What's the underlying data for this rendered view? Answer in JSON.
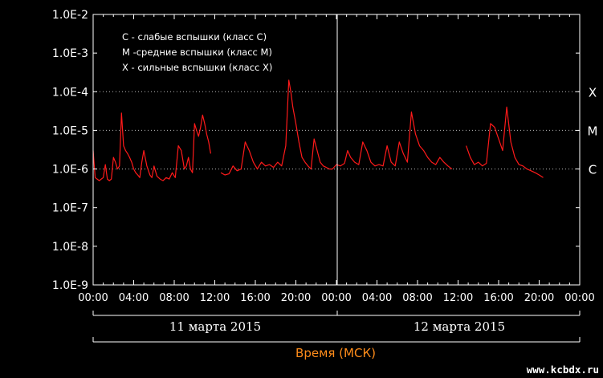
{
  "chart_data": {
    "type": "line",
    "y_scale": "log",
    "ylim": [
      "1.0E-9",
      "1.0E-2"
    ],
    "y_ticks": [
      "1.0E-2",
      "1.0E-3",
      "1.0E-4",
      "1.0E-5",
      "1.0E-6",
      "1.0E-7",
      "1.0E-8",
      "1.0E-9"
    ],
    "x_ticks": [
      "00:00",
      "04:00",
      "08:00",
      "12:00",
      "16:00",
      "20:00",
      "00:00",
      "04:00",
      "08:00",
      "12:00",
      "16:00",
      "20:00",
      "00:00"
    ],
    "date_labels": [
      "11 марта 2015",
      "12 марта 2015"
    ],
    "xlabel": "Время (МСК)",
    "legend": [
      "C - слабые вспышки (класс C)",
      "M -средние вспышки (класс M)",
      "X - сильные вспышки (класс X)"
    ],
    "class_lines": [
      {
        "label": "X",
        "value": "1.0E-4"
      },
      {
        "label": "M",
        "value": "1.0E-5"
      },
      {
        "label": "C",
        "value": "1.0E-6"
      }
    ],
    "series_color": "#ff1a1a",
    "hours_since_start": [
      0,
      0.2,
      0.4,
      0.6,
      0.8,
      1.0,
      1.2,
      1.4,
      1.6,
      1.8,
      2.0,
      2.2,
      2.4,
      2.6,
      2.8,
      3.0,
      3.2,
      3.4,
      3.6,
      3.8,
      4.0,
      4.2,
      4.4,
      4.6,
      4.8,
      5.0,
      5.3,
      5.6,
      5.8,
      6.0,
      6.3,
      6.6,
      6.9,
      7.2,
      7.5,
      7.8,
      8.1,
      8.4,
      8.7,
      9.0,
      9.2,
      9.4,
      9.6,
      9.8,
      10.0,
      10.2,
      10.4,
      10.6,
      10.8,
      11.0,
      11.2,
      11.4,
      11.6,
      null,
      12.6,
      13.0,
      13.4,
      13.8,
      14.2,
      14.6,
      15.0,
      15.4,
      15.8,
      16.2,
      16.6,
      17.0,
      17.4,
      17.8,
      18.2,
      18.6,
      19.0,
      19.3,
      19.5,
      19.7,
      20.0,
      20.3,
      20.6,
      20.9,
      21.2,
      21.5,
      21.8,
      22.1,
      22.4,
      22.7,
      23.0,
      23.3,
      23.6,
      24.0,
      24.4,
      24.8,
      25.1,
      25.4,
      25.8,
      26.2,
      26.6,
      27.0,
      27.4,
      27.8,
      28.2,
      28.6,
      29.0,
      29.4,
      29.8,
      30.2,
      30.6,
      31.0,
      31.4,
      31.8,
      32.2,
      32.6,
      33.0,
      33.4,
      33.8,
      34.2,
      34.6,
      35.0,
      35.4,
      null,
      36.8,
      37.2,
      37.6,
      38.0,
      38.4,
      38.8,
      39.2,
      39.6,
      40.0,
      40.4,
      40.8,
      41.2,
      41.6,
      42.0,
      42.4,
      42.8,
      43.2,
      43.6,
      44.0,
      44.4
    ],
    "y_values": [
      3e-06,
      6e-07,
      5.5e-07,
      5e-07,
      5.5e-07,
      6e-07,
      1.3e-06,
      5.5e-07,
      5e-07,
      5.5e-07,
      2e-06,
      1.5e-06,
      1e-06,
      1.2e-06,
      2.8e-05,
      4e-06,
      3e-06,
      2.5e-06,
      2e-06,
      1.5e-06,
      1e-06,
      8e-07,
      7e-07,
      6e-07,
      1.5e-06,
      3e-06,
      1.2e-06,
      7e-07,
      6e-07,
      1.2e-06,
      6.5e-07,
      5.5e-07,
      5e-07,
      6e-07,
      5.5e-07,
      8e-07,
      6e-07,
      4e-06,
      3e-06,
      1e-06,
      1.2e-06,
      2e-06,
      1e-06,
      8e-07,
      1.5e-05,
      1e-05,
      7e-06,
      1.2e-05,
      2.5e-05,
      1.5e-05,
      8e-06,
      5e-06,
      2.5e-06,
      null,
      8e-07,
      7e-07,
      7.5e-07,
      1.2e-06,
      9e-07,
      1e-06,
      5e-06,
      3e-06,
      1.5e-06,
      1e-06,
      1.5e-06,
      1.2e-06,
      1.3e-06,
      1.1e-06,
      1.5e-06,
      1.2e-06,
      4e-06,
      0.0002,
      0.0001,
      4e-05,
      1.5e-05,
      5e-06,
      2e-06,
      1.5e-06,
      1.2e-06,
      1e-06,
      6e-06,
      3e-06,
      1.5e-06,
      1.2e-06,
      1.1e-06,
      1e-06,
      1e-06,
      1.3e-06,
      1.2e-06,
      1.4e-06,
      3e-06,
      2e-06,
      1.5e-06,
      1.3e-06,
      5e-06,
      3e-06,
      1.5e-06,
      1.2e-06,
      1.3e-06,
      1.2e-06,
      4e-06,
      1.5e-06,
      1.2e-06,
      5e-06,
      2.5e-06,
      1.5e-06,
      3e-05,
      8e-06,
      4e-06,
      3e-06,
      2e-06,
      1.5e-06,
      1.3e-06,
      2e-06,
      1.5e-06,
      1.2e-06,
      1e-06,
      null,
      4e-06,
      2e-06,
      1.3e-06,
      1.5e-06,
      1.2e-06,
      1.4e-06,
      1.5e-05,
      1.2e-05,
      6e-06,
      3e-06,
      4e-05,
      5e-06,
      2e-06,
      1.3e-06,
      1.2e-06,
      1e-06,
      9e-07,
      8e-07,
      7e-07,
      6e-07
    ]
  },
  "watermark": "www.kcbdx.ru"
}
